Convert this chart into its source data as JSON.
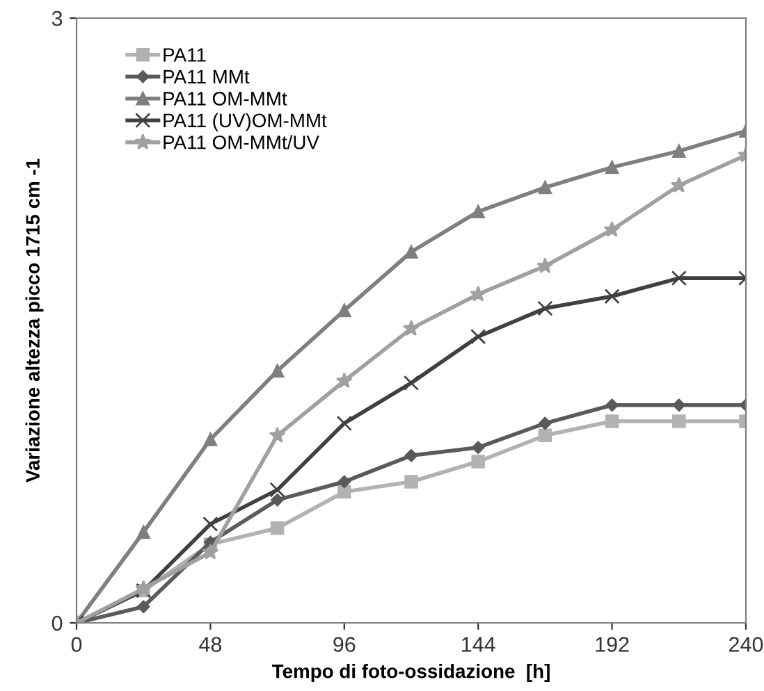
{
  "chart_data": {
    "type": "line",
    "xlabel": "Tempo di foto-ossidazione  [h]",
    "ylabel": "Variazione altezza picco 1715 cm -1",
    "x": [
      0,
      24,
      48,
      72,
      96,
      120,
      144,
      168,
      192,
      216,
      240
    ],
    "xlim": [
      0,
      240
    ],
    "xticks": [
      0,
      48,
      96,
      144,
      192,
      240
    ],
    "ylim": [
      0,
      3
    ],
    "yticks": [
      0,
      3
    ],
    "grid": false,
    "legend": "top left",
    "series": [
      {
        "name": "PA11",
        "color": "#b2b2b2",
        "marker": "square",
        "values": [
          0,
          0.16,
          0.39,
          0.47,
          0.65,
          0.7,
          0.8,
          0.93,
          1.0,
          1.0,
          1.0
        ]
      },
      {
        "name": "PA11 MMt",
        "color": "#5a5a5a",
        "marker": "diamond",
        "values": [
          0,
          0.08,
          0.4,
          0.61,
          0.7,
          0.83,
          0.87,
          0.99,
          1.08,
          1.08,
          1.08
        ]
      },
      {
        "name": "PA11 OM-MMt",
        "color": "#7f7f7f",
        "marker": "triangle",
        "values": [
          0,
          0.45,
          0.91,
          1.25,
          1.55,
          1.84,
          2.04,
          2.16,
          2.26,
          2.34,
          2.44
        ]
      },
      {
        "name": "PA11 (UV)OM-MMt",
        "color": "#404040",
        "marker": "cross",
        "values": [
          0,
          0.16,
          0.49,
          0.66,
          0.99,
          1.19,
          1.42,
          1.56,
          1.62,
          1.71,
          1.71
        ]
      },
      {
        "name": "PA11 OM-MMt/UV",
        "color": "#a0a0a0",
        "marker": "star",
        "values": [
          0,
          0.17,
          0.35,
          0.93,
          1.2,
          1.46,
          1.63,
          1.77,
          1.95,
          2.17,
          2.32
        ]
      }
    ]
  }
}
